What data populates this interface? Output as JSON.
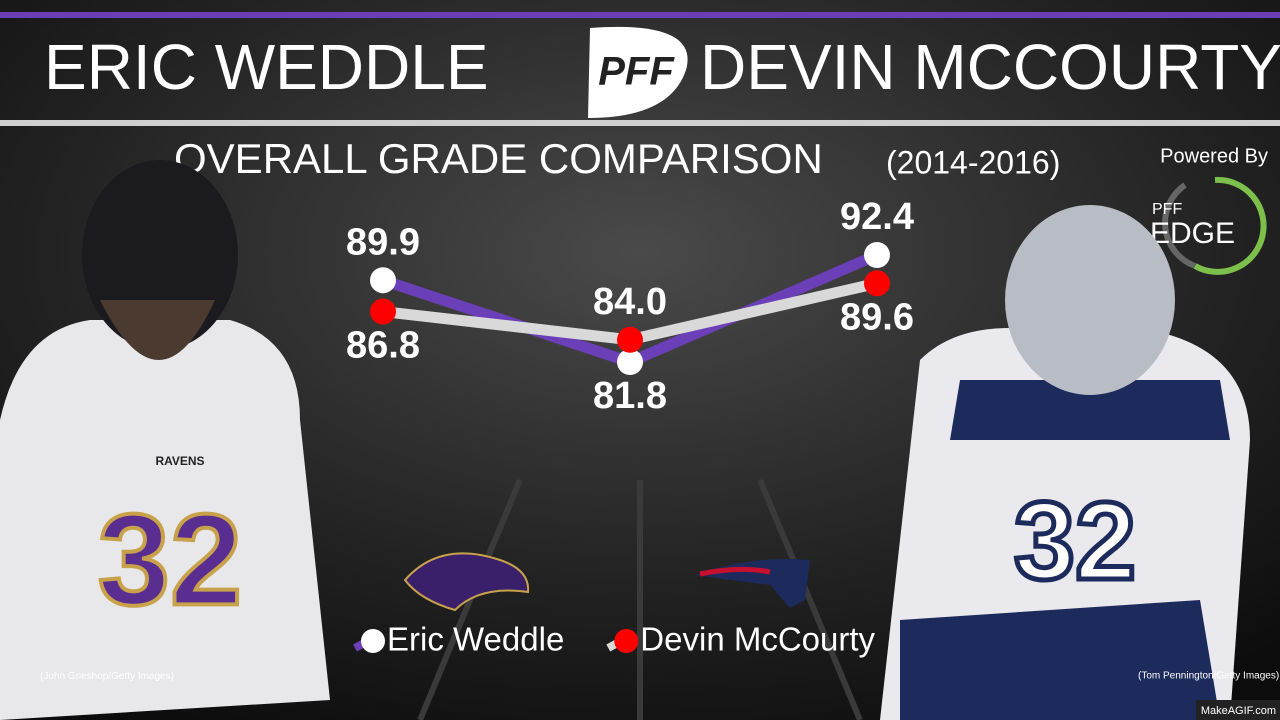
{
  "header": {
    "left_name": "ERIC WEDDLE",
    "right_name": "DEVIN MCCOURTY",
    "logo": "PFF"
  },
  "badge": {
    "powered": "Powered By",
    "brand": "PFF",
    "product": "EDGE"
  },
  "credits": {
    "left": "(John Grieshop/Getty Images)",
    "right": "(Tom Pennington/Getty Images)",
    "watermark": "MakeAGIF.com"
  },
  "chart_data": {
    "type": "line",
    "title": "OVERALL GRADE COMPARISON",
    "subtitle": "(2014-2016)",
    "categories": [
      null,
      null,
      null
    ],
    "series": [
      {
        "name": "Eric Weddle",
        "color": "#6b3fb8",
        "marker_color": "#ffffff",
        "values": [
          89.9,
          81.8,
          92.4
        ]
      },
      {
        "name": "Devin McCourty",
        "color": "#d9d9d9",
        "marker_color": "#ff0000",
        "values": [
          86.8,
          84.0,
          89.6
        ],
        "value_labels": [
          "86.8",
          "84.0",
          "89.6"
        ]
      }
    ]
  }
}
